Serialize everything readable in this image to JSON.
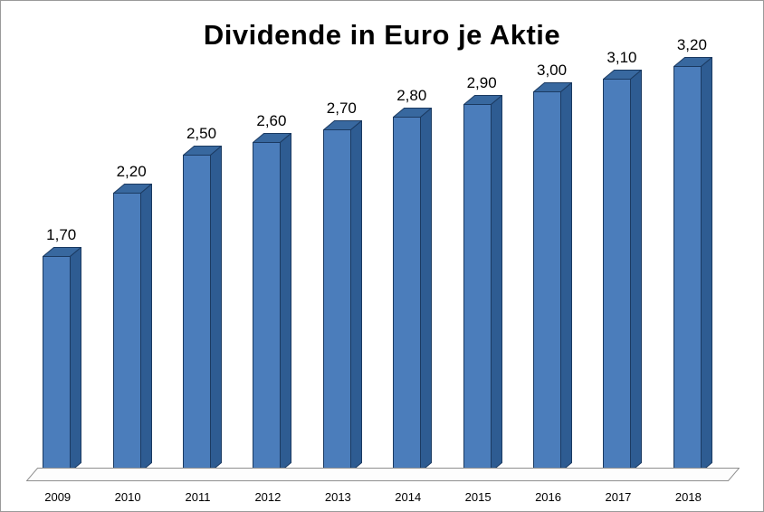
{
  "chart_data": {
    "type": "bar",
    "style": "3d",
    "title": "Dividende in Euro je Aktie",
    "xlabel": "",
    "ylabel": "",
    "categories": [
      "2009",
      "2010",
      "2011",
      "2012",
      "2013",
      "2014",
      "2015",
      "2016",
      "2017",
      "2018"
    ],
    "values": [
      1.7,
      2.2,
      2.5,
      2.6,
      2.7,
      2.8,
      2.9,
      3.0,
      3.1,
      3.2
    ],
    "labels": [
      "1,70",
      "2,20",
      "2,50",
      "2,60",
      "2,70",
      "2,80",
      "2,90",
      "3,00",
      "3,10",
      "3,20"
    ],
    "ylim": [
      0,
      3.4
    ],
    "grid": false,
    "legend": false,
    "bar_color": "#4b7dbb",
    "bar_top_color": "#38689f",
    "bar_side_color": "#2e5c92",
    "bar_outline_color": "#1b3a61",
    "floor_color": "#fdfdfd",
    "floor_outline_color": "#8f8f8f"
  }
}
